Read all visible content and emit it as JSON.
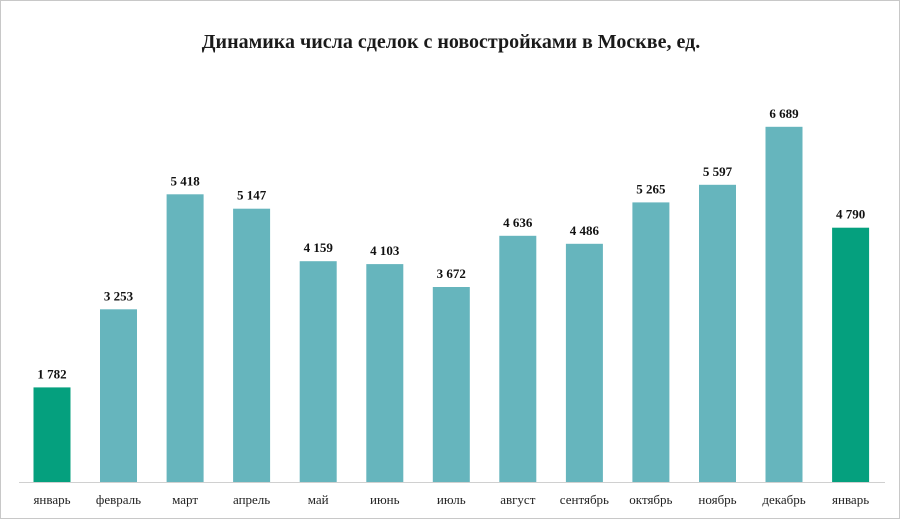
{
  "chart_data": {
    "type": "bar",
    "title": "Динамика числа сделок с новостройками в Москве, ед.",
    "xlabel": "",
    "ylabel": "",
    "grid": false,
    "legend": "none",
    "ylim": [
      0,
      7000
    ],
    "categories": [
      "январь",
      "февраль",
      "март",
      "апрель",
      "май",
      "июнь",
      "июль",
      "август",
      "сентябрь",
      "октябрь",
      "ноябрь",
      "декабрь",
      "январь"
    ],
    "values": [
      1782,
      3253,
      5418,
      5147,
      4159,
      4103,
      3672,
      4636,
      4486,
      5265,
      5597,
      6689,
      4790
    ],
    "value_labels": [
      "1 782",
      "3 253",
      "5 418",
      "5 147",
      "4 159",
      "4 103",
      "3 672",
      "4 636",
      "4 486",
      "5 265",
      "5 597",
      "6 689",
      "4 790"
    ],
    "highlighted_indices": [
      0,
      12
    ],
    "colors": {
      "bar": "#66b5bd",
      "highlight": "#05a07e",
      "axis": "#d0d0d0"
    }
  }
}
